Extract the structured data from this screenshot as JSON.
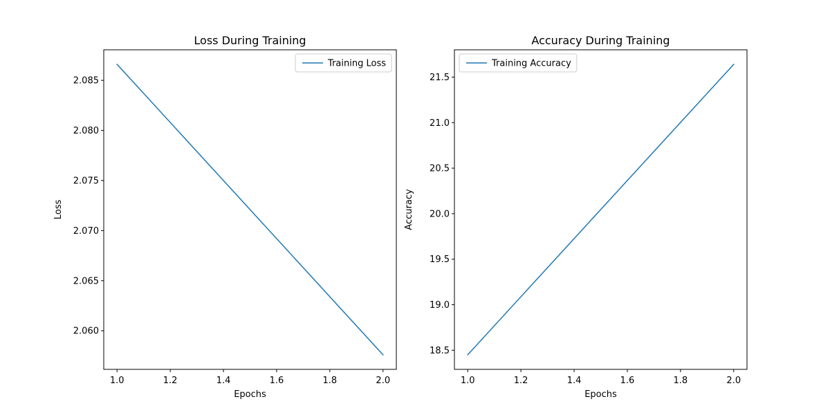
{
  "chart_data": [
    {
      "type": "line",
      "title": "Loss During Training",
      "xlabel": "Epochs",
      "ylabel": "Loss",
      "xlim": [
        0.95,
        2.05
      ],
      "ylim": [
        2.05615,
        2.08805
      ],
      "xticks": [
        1.0,
        1.2,
        1.4,
        1.6,
        1.8,
        2.0
      ],
      "xtick_labels": [
        "1.0",
        "1.2",
        "1.4",
        "1.6",
        "1.8",
        "2.0"
      ],
      "yticks": [
        2.06,
        2.065,
        2.07,
        2.075,
        2.08,
        2.085
      ],
      "ytick_labels": [
        "2.060",
        "2.065",
        "2.070",
        "2.075",
        "2.080",
        "2.085"
      ],
      "grid": false,
      "legend_position": "upper-right",
      "series": [
        {
          "name": "Training Loss",
          "color": "#1f77b4",
          "x": [
            1,
            2
          ],
          "y": [
            2.0866,
            2.0576
          ]
        }
      ]
    },
    {
      "type": "line",
      "title": "Accuracy During Training",
      "xlabel": "Epochs",
      "ylabel": "Accuracy",
      "xlim": [
        0.95,
        2.05
      ],
      "ylim": [
        18.29,
        21.8
      ],
      "xticks": [
        1.0,
        1.2,
        1.4,
        1.6,
        1.8,
        2.0
      ],
      "xtick_labels": [
        "1.0",
        "1.2",
        "1.4",
        "1.6",
        "1.8",
        "2.0"
      ],
      "yticks": [
        18.5,
        19.0,
        19.5,
        20.0,
        20.5,
        21.0,
        21.5
      ],
      "ytick_labels": [
        "18.5",
        "19.0",
        "19.5",
        "20.0",
        "20.5",
        "21.0",
        "21.5"
      ],
      "grid": false,
      "legend_position": "upper-left",
      "series": [
        {
          "name": "Training Accuracy",
          "color": "#1f77b4",
          "x": [
            1,
            2
          ],
          "y": [
            18.45,
            21.64
          ]
        }
      ]
    }
  ]
}
